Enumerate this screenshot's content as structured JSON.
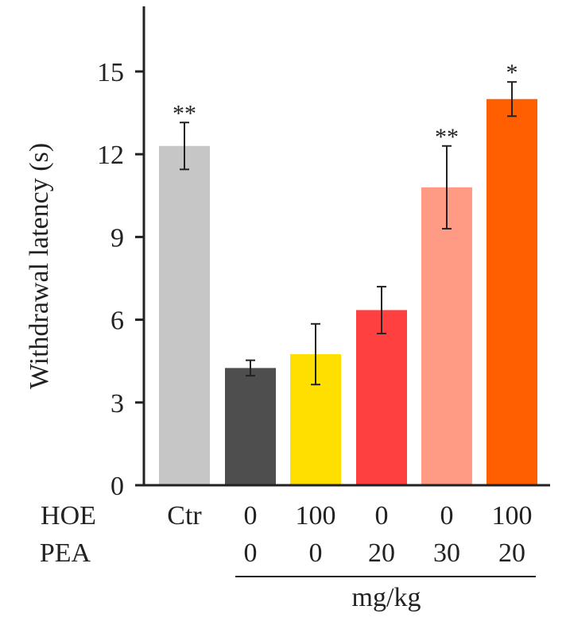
{
  "chart_data": {
    "type": "bar",
    "title": "",
    "ylabel": "Withdrawal latency (s)",
    "ylim": [
      0,
      17.5
    ],
    "yticks": [
      0,
      3,
      6,
      9,
      12,
      15
    ],
    "categories": [
      "Ctr",
      "HOE 0 / PEA 0",
      "HOE 100 / PEA 0",
      "HOE 0 / PEA 20",
      "HOE 0 / PEA 30",
      "HOE 100 / PEA 20"
    ],
    "values": [
      12.3,
      4.25,
      4.75,
      6.35,
      10.8,
      14.0
    ],
    "errors": [
      0.85,
      0.28,
      1.1,
      0.85,
      1.5,
      0.62
    ],
    "significance": [
      "**",
      "",
      "",
      "",
      "**",
      "*"
    ],
    "colors": [
      "#c6c6c6",
      "#4e4e4e",
      "#ffdf00",
      "#ff4040",
      "#ff9a85",
      "#ff5f00"
    ],
    "row_labels": {
      "hoe": "HOE",
      "pea": "PEA"
    },
    "hoe": [
      "Ctr",
      "0",
      "100",
      "0",
      "0",
      "100"
    ],
    "pea": [
      "",
      "0",
      "0",
      "20",
      "30",
      "20"
    ],
    "unit": "mg/kg"
  }
}
